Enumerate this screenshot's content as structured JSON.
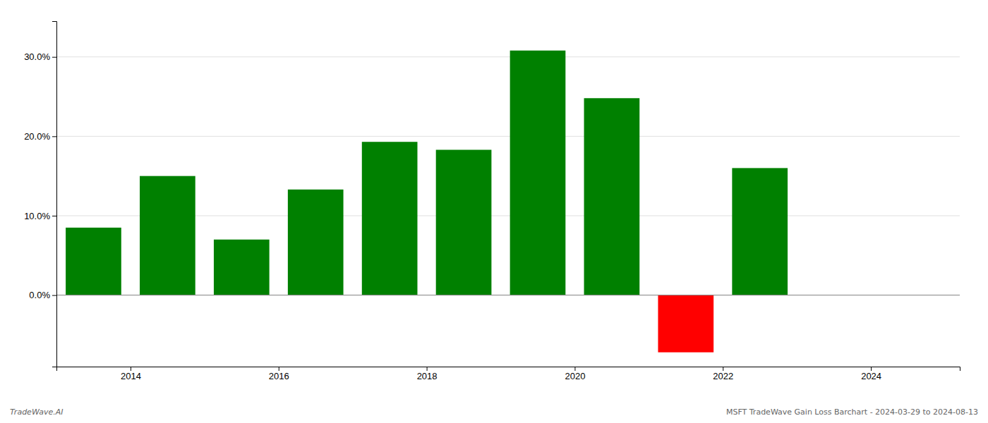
{
  "chart_data": {
    "type": "bar",
    "x": [
      2013.5,
      2014.5,
      2015.5,
      2016.5,
      2017.5,
      2018.5,
      2019.5,
      2020.5,
      2021.5,
      2022.5
    ],
    "values": [
      0.085,
      0.15,
      0.07,
      0.133,
      0.193,
      0.183,
      0.308,
      0.248,
      -0.072,
      0.16
    ],
    "colors": [
      "#008000",
      "#008000",
      "#008000",
      "#008000",
      "#008000",
      "#008000",
      "#008000",
      "#008000",
      "#ff0000",
      "#008000"
    ],
    "xlim": [
      2013.0,
      2025.2
    ],
    "xticks": [
      2014,
      2016,
      2018,
      2020,
      2022,
      2024
    ],
    "ylim": [
      -0.09,
      0.345
    ],
    "yticks": [
      {
        "value": 0.0,
        "label": "0.0%"
      },
      {
        "value": 0.1,
        "label": "10.0%"
      },
      {
        "value": 0.2,
        "label": "20.0%"
      },
      {
        "value": 0.3,
        "label": "30.0%"
      }
    ],
    "grid": true,
    "annotations": [
      "TradeWave.AI",
      "MSFT TradeWave Gain Loss Barchart - 2024-03-29 to 2024-08-13"
    ]
  }
}
